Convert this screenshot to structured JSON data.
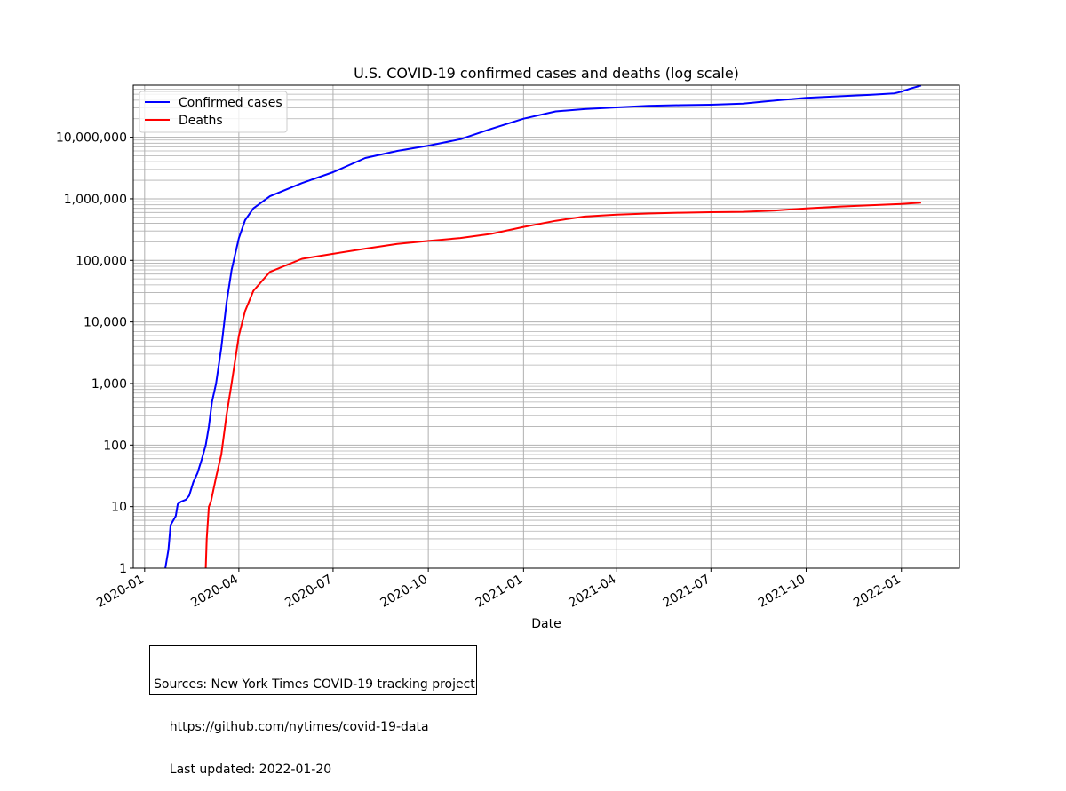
{
  "chart_data": {
    "type": "line",
    "title": "U.S. COVID-19 confirmed cases and deaths (log scale)",
    "xlabel": "Date",
    "ylabel": "",
    "yscale": "log",
    "ylim": [
      1,
      70000000
    ],
    "xlim": [
      "2019-12-21",
      "2022-02-26"
    ],
    "grid": "on (major and minor)",
    "legend_position": "top-left",
    "x_ticks": [
      "2020-01",
      "2020-04",
      "2020-07",
      "2020-10",
      "2021-01",
      "2021-04",
      "2021-07",
      "2021-10",
      "2022-01"
    ],
    "y_ticks": [
      "1",
      "10",
      "100",
      "1,000",
      "10,000",
      "100,000",
      "1,000,000",
      "10,000,000"
    ],
    "series": [
      {
        "name": "Confirmed cases",
        "color": "#0000ff",
        "points": [
          [
            "2020-01-21",
            1
          ],
          [
            "2020-01-24",
            2
          ],
          [
            "2020-01-26",
            5
          ],
          [
            "2020-01-31",
            7
          ],
          [
            "2020-02-02",
            11
          ],
          [
            "2020-02-05",
            12
          ],
          [
            "2020-02-10",
            13
          ],
          [
            "2020-02-13",
            15
          ],
          [
            "2020-02-17",
            25
          ],
          [
            "2020-02-21",
            35
          ],
          [
            "2020-02-25",
            57
          ],
          [
            "2020-02-29",
            100
          ],
          [
            "2020-03-03",
            200
          ],
          [
            "2020-03-06",
            500
          ],
          [
            "2020-03-10",
            1000
          ],
          [
            "2020-03-15",
            3800
          ],
          [
            "2020-03-20",
            20000
          ],
          [
            "2020-03-25",
            70000
          ],
          [
            "2020-04-01",
            230000
          ],
          [
            "2020-04-07",
            450000
          ],
          [
            "2020-04-15",
            700000
          ],
          [
            "2020-05-01",
            1100000
          ],
          [
            "2020-06-01",
            1800000
          ],
          [
            "2020-07-01",
            2700000
          ],
          [
            "2020-08-01",
            4600000
          ],
          [
            "2020-09-01",
            6000000
          ],
          [
            "2020-10-01",
            7300000
          ],
          [
            "2020-11-01",
            9300000
          ],
          [
            "2020-12-01",
            13700000
          ],
          [
            "2021-01-01",
            20000000
          ],
          [
            "2021-02-01",
            26300000
          ],
          [
            "2021-03-01",
            28700000
          ],
          [
            "2021-04-01",
            30500000
          ],
          [
            "2021-05-01",
            32300000
          ],
          [
            "2021-06-01",
            33200000
          ],
          [
            "2021-07-01",
            33700000
          ],
          [
            "2021-08-01",
            35200000
          ],
          [
            "2021-09-01",
            39500000
          ],
          [
            "2021-10-01",
            43600000
          ],
          [
            "2021-11-01",
            46200000
          ],
          [
            "2021-12-01",
            48700000
          ],
          [
            "2021-12-25",
            51500000
          ],
          [
            "2022-01-01",
            55000000
          ],
          [
            "2022-01-10",
            62000000
          ],
          [
            "2022-01-20",
            69000000
          ]
        ]
      },
      {
        "name": "Deaths",
        "color": "#ff0000",
        "points": [
          [
            "2020-02-29",
            1
          ],
          [
            "2020-03-01",
            3
          ],
          [
            "2020-03-03",
            10
          ],
          [
            "2020-03-05",
            12
          ],
          [
            "2020-03-10",
            30
          ],
          [
            "2020-03-15",
            70
          ],
          [
            "2020-03-20",
            300
          ],
          [
            "2020-03-25",
            1000
          ],
          [
            "2020-04-01",
            6000
          ],
          [
            "2020-04-07",
            15000
          ],
          [
            "2020-04-15",
            32000
          ],
          [
            "2020-05-01",
            65000
          ],
          [
            "2020-06-01",
            106000
          ],
          [
            "2020-07-01",
            128000
          ],
          [
            "2020-08-01",
            155000
          ],
          [
            "2020-09-01",
            185000
          ],
          [
            "2020-10-01",
            207000
          ],
          [
            "2020-11-01",
            231000
          ],
          [
            "2020-12-01",
            270000
          ],
          [
            "2021-01-01",
            350000
          ],
          [
            "2021-02-01",
            440000
          ],
          [
            "2021-03-01",
            515000
          ],
          [
            "2021-04-01",
            552000
          ],
          [
            "2021-05-01",
            577000
          ],
          [
            "2021-06-01",
            595000
          ],
          [
            "2021-07-01",
            606000
          ],
          [
            "2021-08-01",
            615000
          ],
          [
            "2021-09-01",
            645000
          ],
          [
            "2021-10-01",
            700000
          ],
          [
            "2021-11-01",
            747000
          ],
          [
            "2021-12-01",
            785000
          ],
          [
            "2022-01-01",
            825000
          ],
          [
            "2022-01-20",
            865000
          ]
        ]
      }
    ]
  },
  "sources": {
    "line1": "Sources: New York Times COVID-19 tracking project",
    "line2": "    https://github.com/nytimes/covid-19-data",
    "line3": "    Last updated: 2022-01-20"
  }
}
